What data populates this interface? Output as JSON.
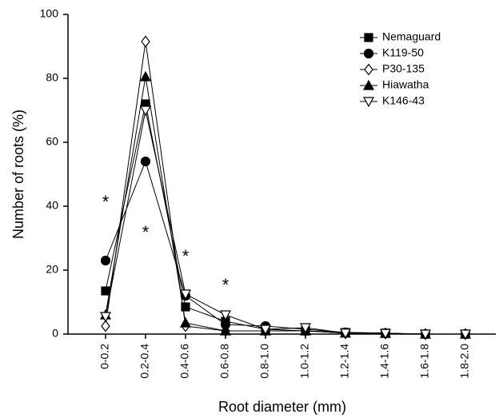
{
  "chart_data": {
    "type": "line",
    "x_label": "Root diameter (mm)",
    "y_label": "Number of roots (%)",
    "categories": [
      "0-0.2",
      "0.2-0.4",
      "0.4-0.6",
      "0.6-0.8",
      "0.8-1.0",
      "1.0-1.2",
      "1.2-1.4",
      "1.4-1.6",
      "1.6-1.8",
      "1.8-2.0"
    ],
    "ylim": [
      0,
      100
    ],
    "yticks": [
      0,
      20,
      40,
      60,
      80,
      100
    ],
    "legend": "top-right",
    "series": [
      {
        "name": "Nemaguard",
        "color": "#000000",
        "marker": "square",
        "filled": true,
        "values": [
          13.5,
          72,
          8.5,
          4,
          1.5,
          1,
          0.5,
          0.3,
          0,
          0
        ]
      },
      {
        "name": "K119-50",
        "color": "#000000",
        "marker": "circle",
        "filled": true,
        "values": [
          23,
          54,
          12,
          3,
          2.5,
          1.5,
          0.5,
          0.3,
          0,
          0
        ]
      },
      {
        "name": "P30-135",
        "color": "#000000",
        "marker": "diamond",
        "filled": false,
        "values": [
          2.5,
          91.5,
          2.5,
          1,
          1,
          1,
          0.3,
          0.2,
          0,
          0
        ]
      },
      {
        "name": "Hiawatha",
        "color": "#000000",
        "marker": "triangle-up",
        "filled": true,
        "values": [
          6,
          80.5,
          3.5,
          1,
          1,
          1,
          0.3,
          0.2,
          0,
          0
        ]
      },
      {
        "name": "K146-43",
        "color": "#000000",
        "marker": "triangle-down",
        "filled": false,
        "values": [
          5.5,
          70,
          12.5,
          6,
          1.5,
          2,
          0.3,
          0.2,
          0,
          0
        ]
      }
    ],
    "annotations": [
      {
        "text": "*",
        "x": "0-0.2",
        "y": 42
      },
      {
        "text": "*",
        "x": "0.2-0.4",
        "y": 32.5
      },
      {
        "text": "*",
        "x": "0.4-0.6",
        "y": 25
      },
      {
        "text": "*",
        "x": "0.6-0.8",
        "y": 16
      }
    ]
  }
}
